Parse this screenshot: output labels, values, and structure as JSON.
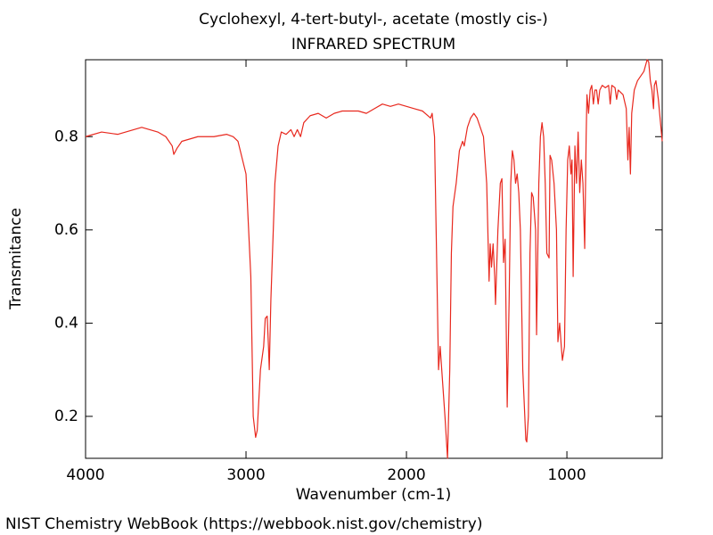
{
  "chart_data": {
    "type": "line",
    "title": "Cyclohexyl, 4-tert-butyl-, acetate (mostly cis-)",
    "subtitle": "INFRARED SPECTRUM",
    "x_label": "Wavenumber (cm-1)",
    "y_label": "Transmitance",
    "color": "#e8281e",
    "xlim": [
      4000,
      406
    ],
    "ylim": [
      0.11,
      0.965
    ],
    "xticks": [
      4000,
      3000,
      2000,
      1000
    ],
    "yticks": [
      0.2,
      0.4,
      0.6,
      0.8
    ],
    "grid": false,
    "x": [
      4000,
      3900,
      3800,
      3700,
      3650,
      3600,
      3550,
      3500,
      3460,
      3450,
      3430,
      3400,
      3300,
      3200,
      3120,
      3080,
      3050,
      3000,
      2970,
      2955,
      2940,
      2930,
      2910,
      2890,
      2880,
      2868,
      2860,
      2855,
      2845,
      2820,
      2800,
      2780,
      2750,
      2720,
      2700,
      2680,
      2660,
      2640,
      2600,
      2550,
      2500,
      2450,
      2400,
      2300,
      2250,
      2200,
      2150,
      2100,
      2050,
      2000,
      1950,
      1900,
      1850,
      1840,
      1825,
      1815,
      1800,
      1790,
      1760,
      1744,
      1730,
      1720,
      1710,
      1690,
      1670,
      1650,
      1640,
      1620,
      1600,
      1580,
      1560,
      1540,
      1520,
      1500,
      1485,
      1478,
      1470,
      1460,
      1450,
      1445,
      1430,
      1415,
      1405,
      1395,
      1385,
      1372,
      1360,
      1350,
      1340,
      1330,
      1320,
      1310,
      1300,
      1290,
      1275,
      1256,
      1250,
      1240,
      1230,
      1220,
      1210,
      1195,
      1189,
      1175,
      1165,
      1155,
      1145,
      1135,
      1125,
      1111,
      1105,
      1095,
      1080,
      1065,
      1056,
      1045,
      1035,
      1028,
      1015,
      1005,
      995,
      985,
      975,
      968,
      961,
      950,
      940,
      930,
      920,
      910,
      900,
      889,
      880,
      875,
      865,
      855,
      845,
      835,
      825,
      815,
      805,
      795,
      780,
      760,
      740,
      730,
      720,
      700,
      690,
      680,
      650,
      630,
      620,
      612,
      604,
      596,
      580,
      560,
      540,
      520,
      500,
      490,
      480,
      470,
      460,
      455,
      445,
      430,
      406
    ],
    "values": [
      0.8,
      0.81,
      0.805,
      0.815,
      0.82,
      0.815,
      0.81,
      0.8,
      0.78,
      0.762,
      0.775,
      0.79,
      0.8,
      0.8,
      0.805,
      0.8,
      0.79,
      0.72,
      0.5,
      0.2,
      0.155,
      0.17,
      0.3,
      0.35,
      0.41,
      0.415,
      0.35,
      0.3,
      0.45,
      0.7,
      0.78,
      0.81,
      0.805,
      0.815,
      0.8,
      0.815,
      0.8,
      0.83,
      0.845,
      0.85,
      0.84,
      0.85,
      0.855,
      0.855,
      0.85,
      0.86,
      0.87,
      0.865,
      0.87,
      0.865,
      0.86,
      0.855,
      0.84,
      0.85,
      0.8,
      0.6,
      0.3,
      0.35,
      0.2,
      0.11,
      0.3,
      0.55,
      0.65,
      0.7,
      0.77,
      0.79,
      0.78,
      0.82,
      0.84,
      0.85,
      0.84,
      0.82,
      0.8,
      0.7,
      0.49,
      0.57,
      0.52,
      0.57,
      0.5,
      0.44,
      0.6,
      0.7,
      0.71,
      0.53,
      0.58,
      0.22,
      0.45,
      0.7,
      0.77,
      0.75,
      0.7,
      0.72,
      0.68,
      0.6,
      0.3,
      0.15,
      0.145,
      0.2,
      0.55,
      0.68,
      0.67,
      0.6,
      0.375,
      0.7,
      0.8,
      0.83,
      0.8,
      0.7,
      0.55,
      0.54,
      0.76,
      0.75,
      0.7,
      0.6,
      0.36,
      0.4,
      0.35,
      0.32,
      0.35,
      0.6,
      0.75,
      0.78,
      0.72,
      0.75,
      0.5,
      0.78,
      0.7,
      0.81,
      0.68,
      0.75,
      0.7,
      0.56,
      0.8,
      0.89,
      0.85,
      0.9,
      0.91,
      0.87,
      0.9,
      0.9,
      0.87,
      0.9,
      0.91,
      0.905,
      0.91,
      0.87,
      0.91,
      0.905,
      0.88,
      0.9,
      0.89,
      0.86,
      0.75,
      0.82,
      0.72,
      0.85,
      0.9,
      0.92,
      0.93,
      0.94,
      0.965,
      0.96,
      0.92,
      0.9,
      0.86,
      0.91,
      0.92,
      0.88,
      0.79
    ]
  },
  "footer": "NIST Chemistry WebBook (https://webbook.nist.gov/chemistry)"
}
